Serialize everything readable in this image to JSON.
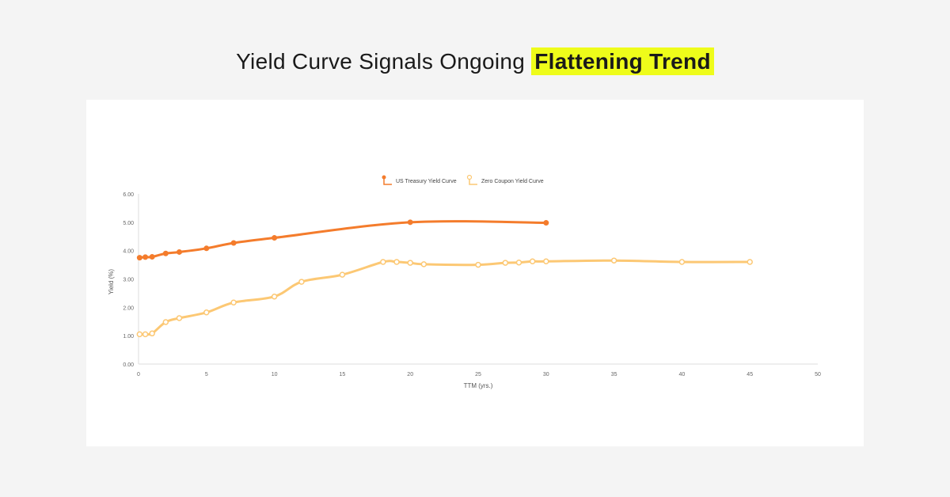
{
  "headline": {
    "text": "Yield Curve Signals Ongoing",
    "highlight": "Flattening Trend",
    "highlight_color": "#eefc1a"
  },
  "chart_data": {
    "type": "line",
    "xlabel": "TTM (yrs.)",
    "ylabel": "Yield (%)",
    "xlim": [
      0,
      50
    ],
    "ylim": [
      0,
      6
    ],
    "xticks": [
      "0",
      "5",
      "10",
      "15",
      "20",
      "25",
      "30",
      "35",
      "40",
      "45",
      "50"
    ],
    "yticks": [
      "0.00",
      "1.00",
      "2.00",
      "3.00",
      "4.00",
      "5.00",
      "6.00"
    ],
    "legend_position": "top-center",
    "series": [
      {
        "name": "US Treasury Yield Curve",
        "color": "#f47c2c",
        "marker": "filled",
        "x": [
          0.08,
          0.5,
          1,
          2,
          3,
          5,
          7,
          10,
          20,
          30
        ],
        "y": [
          3.75,
          3.77,
          3.78,
          3.9,
          3.95,
          4.08,
          4.27,
          4.45,
          5.0,
          4.98
        ]
      },
      {
        "name": "Zero Coupon Yield Curve",
        "color": "#fcc874",
        "marker": "hollow",
        "x": [
          0.08,
          0.5,
          1,
          2,
          3,
          5,
          7,
          10,
          12,
          15,
          18,
          19,
          20,
          21,
          25,
          27,
          28,
          29,
          30,
          35,
          40,
          45
        ],
        "y": [
          1.05,
          1.05,
          1.08,
          1.48,
          1.62,
          1.82,
          2.17,
          2.38,
          2.9,
          3.15,
          3.6,
          3.6,
          3.57,
          3.52,
          3.5,
          3.57,
          3.58,
          3.62,
          3.62,
          3.65,
          3.6,
          3.6
        ]
      }
    ]
  }
}
